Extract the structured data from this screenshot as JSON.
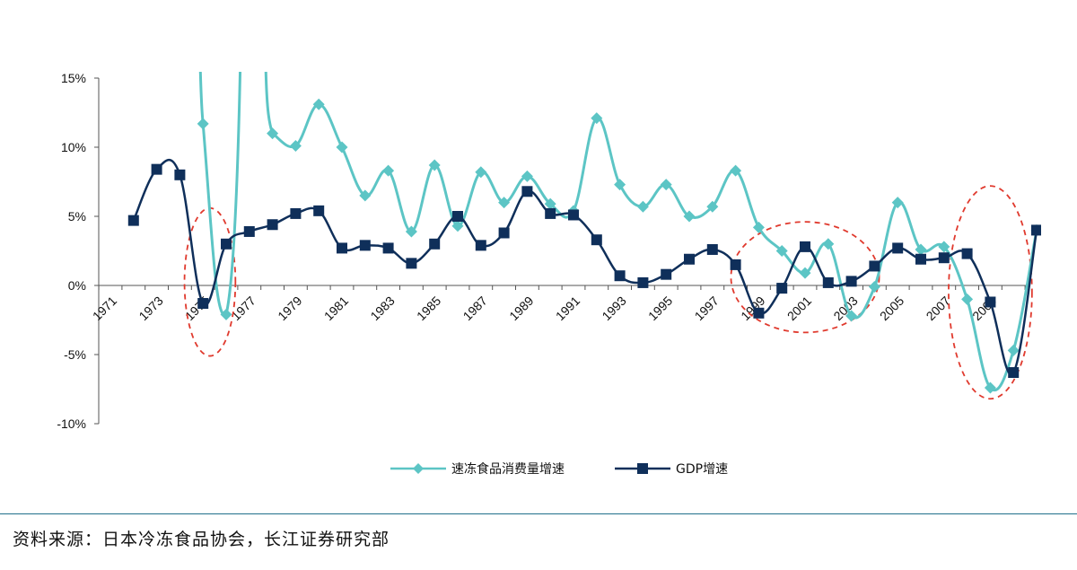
{
  "chart_data": {
    "type": "line",
    "x": [
      1971,
      1972,
      1973,
      1974,
      1975,
      1976,
      1977,
      1978,
      1979,
      1980,
      1981,
      1982,
      1983,
      1984,
      1985,
      1986,
      1987,
      1988,
      1989,
      1990,
      1991,
      1992,
      1993,
      1994,
      1995,
      1996,
      1997,
      1998,
      1999,
      2000,
      2001,
      2002,
      2003,
      2004,
      2005,
      2006,
      2007,
      2008,
      2009,
      2010,
      2011
    ],
    "x_tick_labels": [
      "1971",
      "1973",
      "1975",
      "1977",
      "1979",
      "1981",
      "1983",
      "1985",
      "1987",
      "1989",
      "1991",
      "1993",
      "1995",
      "1997",
      "1999",
      "2001",
      "2003",
      "2005",
      "2007",
      "2009"
    ],
    "y_tick_labels": [
      "15%",
      "10%",
      "5%",
      "0%",
      "-5%",
      "-10%"
    ],
    "y_ticks": [
      15,
      10,
      5,
      0,
      -5,
      -10
    ],
    "ylim": [
      -10,
      15
    ],
    "series": [
      {
        "name": "速冻食品消费量增速",
        "color": "#5cc5c5",
        "marker": "diamond",
        "x": [
          1975,
          1976,
          1978,
          1979,
          1980,
          1981,
          1982,
          1983,
          1984,
          1985,
          1986,
          1987,
          1988,
          1989,
          1990,
          1991,
          1992,
          1993,
          1994,
          1995,
          1996,
          1997,
          1998,
          1999,
          2000,
          2001,
          2002,
          2003,
          2004,
          2005,
          2006,
          2007,
          2008,
          2009,
          2010,
          2011
        ],
        "values": [
          11.7,
          -2.1,
          11.0,
          10.1,
          13.1,
          10.0,
          6.5,
          8.3,
          3.9,
          8.7,
          4.3,
          8.2,
          6.0,
          7.9,
          5.9,
          5.4,
          12.1,
          7.3,
          5.7,
          7.3,
          5.0,
          5.7,
          8.3,
          4.2,
          2.5,
          0.9,
          3.0,
          -2.2,
          -0.1,
          6.0,
          2.6,
          2.8,
          -1.0,
          -7.4,
          -4.7,
          4.0
        ]
      },
      {
        "name": "GDP增速",
        "color": "#0f2f5a",
        "marker": "square",
        "x": [
          1972,
          1973,
          1974,
          1975,
          1976,
          1977,
          1978,
          1979,
          1980,
          1981,
          1982,
          1983,
          1984,
          1985,
          1986,
          1987,
          1988,
          1989,
          1990,
          1991,
          1992,
          1993,
          1994,
          1995,
          1996,
          1997,
          1998,
          1999,
          2000,
          2001,
          2002,
          2003,
          2004,
          2005,
          2006,
          2007,
          2008,
          2009,
          2010,
          2011
        ],
        "values": [
          4.7,
          8.4,
          8.0,
          -1.3,
          3.0,
          3.9,
          4.4,
          5.2,
          5.4,
          2.7,
          2.9,
          2.7,
          1.6,
          3.0,
          5.0,
          2.9,
          3.8,
          6.8,
          5.2,
          5.1,
          3.3,
          0.7,
          0.2,
          0.8,
          1.9,
          2.6,
          1.5,
          -2.0,
          -0.2,
          2.8,
          0.2,
          0.3,
          1.4,
          2.7,
          1.9,
          2.0,
          2.3,
          -1.2,
          -6.3,
          4.0
        ]
      }
    ],
    "legend": {
      "placement": "bottom"
    },
    "highlight_ellipses": [
      {
        "x_from": 1974.2,
        "x_to": 1976.4,
        "y_from": -5.1,
        "y_to": 5.6
      },
      {
        "x_from": 1997.8,
        "x_to": 2004.2,
        "y_from": -3.4,
        "y_to": 4.6
      },
      {
        "x_from": 2007.2,
        "x_to": 2010.8,
        "y_from": -8.2,
        "y_to": 7.2
      }
    ],
    "grid": false
  },
  "footer": {
    "source": "资料来源：日本冷冻食品协会，长江证券研究部"
  }
}
